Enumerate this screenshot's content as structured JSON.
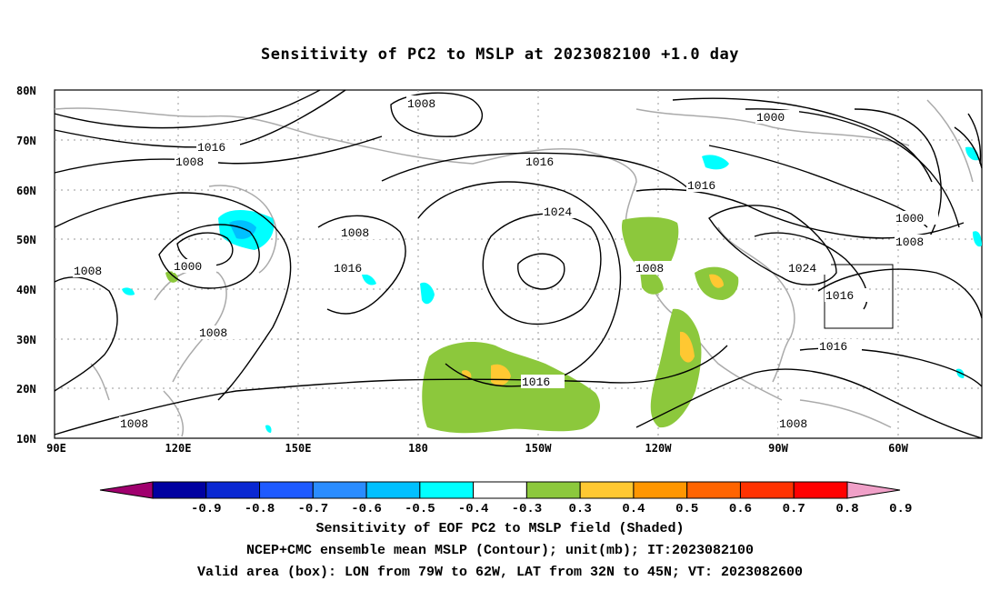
{
  "title": "Sensitivity of PC2 to MSLP at 2023082100 +1.0 day",
  "lat_labels": [
    "80N",
    "70N",
    "60N",
    "50N",
    "40N",
    "30N",
    "20N",
    "10N"
  ],
  "lon_labels": [
    "90E",
    "120E",
    "150E",
    "180",
    "150W",
    "120W",
    "90W",
    "60W"
  ],
  "contour_labels": [
    "1008",
    "1016",
    "1008",
    "1008",
    "1000",
    "1008",
    "1008",
    "1008",
    "1016",
    "1024",
    "1016",
    "1016",
    "1000",
    "1016",
    "1000",
    "1008",
    "1008",
    "1024",
    "1016",
    "1016",
    "1008"
  ],
  "colorbar": {
    "ticks": [
      "-0.9",
      "-0.8",
      "-0.7",
      "-0.6",
      "-0.5",
      "-0.4",
      "-0.3",
      "0.3",
      "0.4",
      "0.5",
      "0.6",
      "0.7",
      "0.8",
      "0.9"
    ],
    "colors": [
      "#a0006e",
      "#0000a0",
      "#0a28d2",
      "#1e5aff",
      "#2a8cff",
      "#00c0ff",
      "#00ffff",
      "#ffffff",
      "#8cc83c",
      "#ffc832",
      "#ff9600",
      "#ff6400",
      "#ff3200",
      "#ff0000",
      "#f0a0c8"
    ]
  },
  "footer": {
    "line1": "Sensitivity of EOF PC2 to MSLP field (Shaded)",
    "line2": "NCEP+CMC ensemble mean MSLP (Contour); unit(mb); IT:2023082100",
    "line3": "Valid area (box): LON from 79W to 62W, LAT from 32N to 45N; VT: 2023082600"
  }
}
